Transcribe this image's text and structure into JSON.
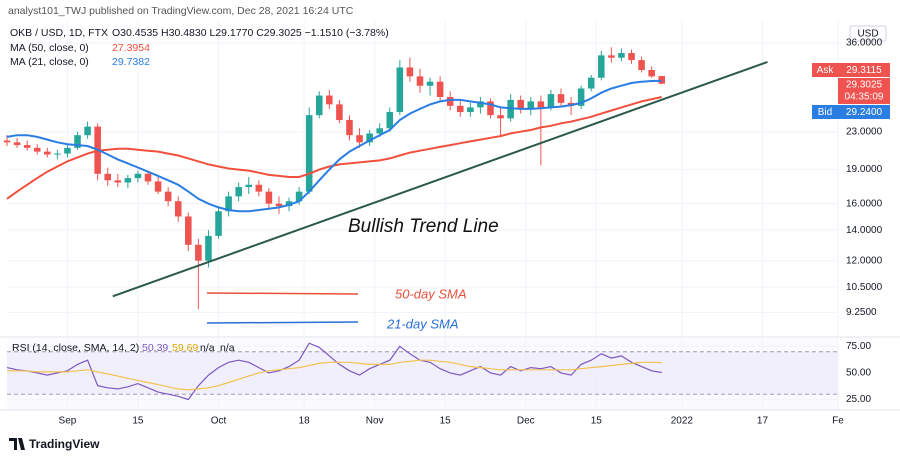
{
  "header": {
    "byline": "analyst101_TWJ published on TradingView.com, Dec 28, 2021 16:24 UTC",
    "ohlc": "O30.4535 H30.4830 L29.1770 C29.3025 −1.1510 (−3.78%)"
  },
  "price_tags": {
    "currency": "USD",
    "ask_label": "Ask",
    "ask": "29.3115",
    "last": "29.3025",
    "countdown": "04:35:09",
    "bid_label": "Bid",
    "bid": "29.2400"
  },
  "footer": {
    "logo": "TradingView"
  },
  "chart_data": {
    "type": "candlestick",
    "title": "OKB / USD, 1D, FTX",
    "log_scale": true,
    "grid": true,
    "up_color": "#26a69a",
    "down_color": "#ef5350",
    "x": [
      "2021-08-20",
      "2021-08-22",
      "2021-08-24",
      "2021-08-26",
      "2021-08-28",
      "2021-08-30",
      "2021-09-01",
      "2021-09-03",
      "2021-09-05",
      "2021-09-07",
      "2021-09-09",
      "2021-09-11",
      "2021-09-13",
      "2021-09-15",
      "2021-09-17",
      "2021-09-19",
      "2021-09-21",
      "2021-09-23",
      "2021-09-25",
      "2021-09-27",
      "2021-09-29",
      "2021-10-01",
      "2021-10-03",
      "2021-10-05",
      "2021-10-07",
      "2021-10-09",
      "2021-10-11",
      "2021-10-13",
      "2021-10-15",
      "2021-10-17",
      "2021-10-19",
      "2021-10-21",
      "2021-10-23",
      "2021-10-25",
      "2021-10-27",
      "2021-10-29",
      "2021-10-31",
      "2021-11-02",
      "2021-11-04",
      "2021-11-06",
      "2021-11-08",
      "2021-11-10",
      "2021-11-12",
      "2021-11-14",
      "2021-11-16",
      "2021-11-18",
      "2021-11-20",
      "2021-11-22",
      "2021-11-24",
      "2021-11-26",
      "2021-11-28",
      "2021-11-30",
      "2021-12-02",
      "2021-12-04",
      "2021-12-06",
      "2021-12-08",
      "2021-12-10",
      "2021-12-12",
      "2021-12-14",
      "2021-12-16",
      "2021-12-18",
      "2021-12-20",
      "2021-12-22",
      "2021-12-24",
      "2021-12-26",
      "2021-12-28"
    ],
    "open": [
      22.0,
      21.8,
      21.5,
      21.2,
      20.8,
      20.5,
      20.6,
      21.2,
      22.6,
      23.6,
      18.6,
      18.0,
      17.8,
      18.2,
      18.6,
      17.9,
      17.0,
      16.2,
      15.0,
      13.0,
      12.0,
      13.6,
      15.4,
      16.6,
      17.4,
      17.6,
      17.0,
      16.0,
      15.8,
      16.2,
      17.0,
      25.0,
      27.6,
      26.4,
      24.4,
      22.6,
      21.8,
      22.8,
      23.4,
      25.4,
      31.8,
      30.4,
      29.0,
      29.6,
      27.4,
      26.2,
      25.4,
      26.0,
      26.8,
      25.0,
      24.6,
      27.0,
      25.8,
      26.8,
      26.0,
      27.8,
      26.6,
      26.2,
      28.6,
      30.2,
      33.8,
      33.4,
      34.2,
      33.0,
      31.4,
      30.4535
    ],
    "high": [
      22.6,
      22.3,
      22.0,
      21.6,
      21.2,
      21.0,
      21.5,
      23.0,
      24.2,
      24.0,
      19.2,
      18.6,
      18.5,
      18.9,
      18.9,
      18.3,
      17.4,
      16.6,
      15.3,
      13.4,
      14.0,
      15.8,
      17.0,
      17.8,
      18.3,
      18.0,
      17.3,
      16.6,
      16.5,
      17.4,
      26.0,
      28.2,
      28.4,
      27.0,
      25.0,
      23.4,
      23.2,
      24.0,
      26.0,
      33.0,
      33.4,
      31.6,
      30.2,
      30.4,
      28.2,
      27.0,
      26.6,
      27.4,
      27.2,
      26.0,
      27.8,
      27.6,
      27.4,
      27.6,
      28.4,
      28.6,
      27.4,
      29.0,
      30.6,
      34.6,
      35.2,
      35.0,
      34.8,
      33.6,
      32.0,
      30.483
    ],
    "low": [
      21.4,
      21.2,
      20.9,
      20.5,
      20.2,
      20.0,
      20.2,
      21.0,
      22.2,
      18.0,
      17.5,
      17.4,
      17.3,
      17.8,
      17.6,
      16.8,
      15.8,
      14.6,
      12.6,
      9.4,
      11.6,
      13.4,
      15.0,
      16.2,
      16.8,
      16.6,
      15.6,
      15.2,
      15.4,
      15.9,
      16.8,
      24.6,
      25.8,
      24.0,
      22.0,
      21.2,
      21.4,
      22.4,
      23.0,
      25.0,
      29.6,
      28.0,
      27.6,
      26.8,
      25.6,
      24.8,
      24.8,
      25.2,
      24.6,
      22.4,
      24.2,
      25.2,
      25.0,
      19.4,
      25.6,
      26.2,
      25.0,
      25.8,
      28.2,
      29.8,
      32.6,
      32.8,
      32.4,
      31.0,
      30.2,
      29.177
    ],
    "close": [
      21.8,
      21.5,
      21.2,
      20.8,
      20.5,
      20.6,
      21.2,
      22.6,
      23.6,
      18.6,
      18.0,
      17.8,
      18.2,
      18.6,
      17.9,
      17.0,
      16.2,
      15.0,
      13.0,
      12.0,
      13.6,
      15.4,
      16.6,
      17.4,
      17.6,
      17.0,
      16.0,
      15.8,
      16.2,
      17.0,
      25.0,
      27.6,
      26.4,
      24.4,
      22.6,
      21.8,
      22.8,
      23.4,
      25.4,
      31.8,
      30.4,
      29.0,
      29.6,
      27.4,
      26.2,
      25.4,
      26.0,
      26.8,
      25.0,
      24.6,
      27.0,
      25.8,
      26.8,
      26.0,
      27.8,
      26.6,
      26.2,
      28.6,
      30.2,
      33.8,
      33.4,
      34.2,
      33.0,
      31.4,
      30.4,
      29.3025
    ],
    "series": [
      {
        "name": "MA (50, close, 0)",
        "color": "#f0503c",
        "values": [
          16.4,
          17.0,
          17.6,
          18.2,
          18.8,
          19.3,
          19.8,
          20.2,
          20.6,
          20.9,
          21.0,
          21.1,
          21.1,
          21.0,
          20.9,
          20.8,
          20.6,
          20.4,
          20.1,
          19.8,
          19.5,
          19.3,
          19.1,
          19.0,
          18.9,
          18.7,
          18.5,
          18.4,
          18.3,
          18.3,
          18.6,
          19.0,
          19.3,
          19.5,
          19.6,
          19.7,
          19.8,
          19.9,
          20.1,
          20.4,
          20.7,
          20.9,
          21.1,
          21.3,
          21.5,
          21.7,
          21.9,
          22.1,
          22.3,
          22.5,
          22.8,
          23.0,
          23.2,
          23.5,
          23.7,
          24.0,
          24.2,
          24.5,
          24.8,
          25.2,
          25.6,
          26.0,
          26.4,
          26.8,
          27.1,
          27.3954
        ]
      },
      {
        "name": "MA (21, close, 0)",
        "color": "#2a7de1",
        "values": [
          22.4,
          22.6,
          22.6,
          22.4,
          22.1,
          21.8,
          21.6,
          21.5,
          21.4,
          21.0,
          20.5,
          20.0,
          19.6,
          19.2,
          18.8,
          18.4,
          18.0,
          17.6,
          17.0,
          16.4,
          16.0,
          15.7,
          15.5,
          15.4,
          15.4,
          15.5,
          15.6,
          15.7,
          15.9,
          16.2,
          17.0,
          18.0,
          19.0,
          20.0,
          20.8,
          21.4,
          22.0,
          22.6,
          23.2,
          24.4,
          25.2,
          25.8,
          26.4,
          26.8,
          27.0,
          27.0,
          26.8,
          26.6,
          26.4,
          26.0,
          25.9,
          25.8,
          25.8,
          25.9,
          26.0,
          26.1,
          26.3,
          26.6,
          27.2,
          28.0,
          28.6,
          29.0,
          29.4,
          29.6,
          29.7,
          29.7382
        ]
      }
    ],
    "xlim": [
      "2021-08-20",
      "2022-02-01"
    ],
    "xticks": [
      {
        "value": "2021-09-01",
        "label": "Sep"
      },
      {
        "value": "2021-09-15",
        "label": "15"
      },
      {
        "value": "2021-10-01",
        "label": "Oct"
      },
      {
        "value": "2021-10-18",
        "label": "18"
      },
      {
        "value": "2021-11-01",
        "label": "Nov"
      },
      {
        "value": "2021-11-15",
        "label": "15"
      },
      {
        "value": "2021-12-01",
        "label": "Dec"
      },
      {
        "value": "2021-12-15",
        "label": "15"
      },
      {
        "value": "2022-01-01",
        "label": "2022"
      },
      {
        "value": "2022-01-17",
        "label": "17"
      },
      {
        "value": "2022-02-01",
        "label": "Fe"
      }
    ],
    "ylim": [
      8.25,
      40.4
    ],
    "yticks": [
      {
        "value": 36,
        "label": "36.0000"
      },
      {
        "value": 23,
        "label": "23.0000"
      },
      {
        "value": 19,
        "label": "19.0000"
      },
      {
        "value": 16,
        "label": "16.0000"
      },
      {
        "value": 14,
        "label": "14.0000"
      },
      {
        "value": 12,
        "label": "12.0000"
      },
      {
        "value": 10.5,
        "label": "10.5000"
      },
      {
        "value": 9.25,
        "label": "9.2500"
      }
    ],
    "trend_line": {
      "label": "Bullish  Trend Line",
      "color": "#2b5a4a",
      "x": [
        "2021-09-10",
        "2022-01-18"
      ],
      "y": [
        10.03,
        32.7
      ]
    },
    "annotations": [
      {
        "text": "50-day SMA",
        "color": "#e8503a"
      },
      {
        "text": "21-day SMA",
        "color": "#2a6fd6"
      }
    ],
    "rsi": {
      "title": "RSI (14, close, SMA, 14, 2)",
      "na_labels": [
        "n/a",
        "n/a"
      ],
      "ylim": [
        17,
        81
      ],
      "yticks": [
        {
          "value": 75,
          "label": "75.00"
        },
        {
          "value": 50,
          "label": "50.00"
        },
        {
          "value": 25,
          "label": "25.00"
        }
      ],
      "band": [
        30,
        70
      ],
      "series": [
        {
          "name": "RSI",
          "color": "#7e57c2",
          "values": [
            55,
            53,
            52,
            50,
            48,
            50,
            52,
            58,
            62,
            38,
            36,
            35,
            37,
            40,
            36,
            32,
            30,
            28,
            25,
            38,
            48,
            55,
            60,
            62,
            60,
            55,
            50,
            52,
            56,
            62,
            78,
            74,
            66,
            58,
            52,
            48,
            54,
            58,
            62,
            75,
            68,
            62,
            60,
            54,
            50,
            48,
            52,
            56,
            50,
            48,
            56,
            52,
            55,
            54,
            56,
            50,
            48,
            58,
            62,
            68,
            64,
            66,
            60,
            56,
            52,
            50.39
          ]
        },
        {
          "name": "SMA",
          "color": "#f2c14e",
          "values": [
            52,
            52,
            52,
            51,
            51,
            51,
            51,
            52,
            53,
            51,
            49,
            47,
            45,
            43,
            41,
            39,
            37,
            35,
            34,
            35,
            36,
            38,
            41,
            44,
            47,
            50,
            52,
            53,
            54,
            55,
            57,
            59,
            60,
            60,
            60,
            59,
            58,
            58,
            58,
            60,
            61,
            62,
            62,
            61,
            60,
            58,
            56,
            55,
            54,
            53,
            53,
            53,
            53,
            53,
            53,
            53,
            53,
            54,
            55,
            56,
            57,
            58,
            59,
            60,
            60,
            59.69
          ]
        }
      ]
    }
  }
}
